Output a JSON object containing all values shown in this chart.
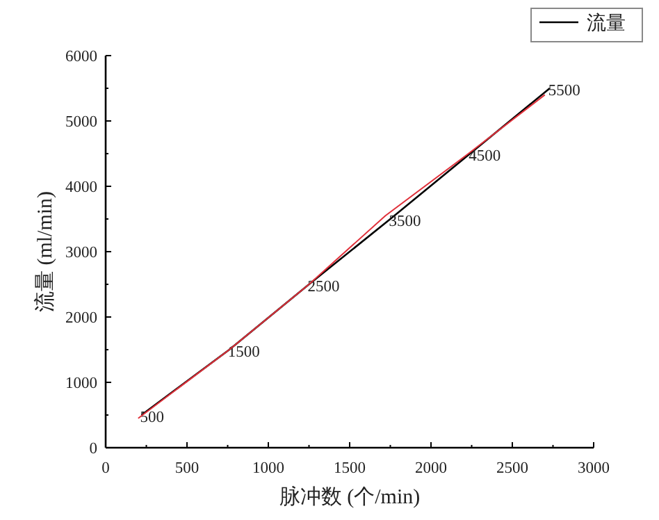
{
  "chart_data": {
    "type": "line",
    "xlabel": "脉冲数 (个/min)",
    "ylabel": "流量 (ml/min)",
    "xlim": [
      0,
      3000
    ],
    "xticks": [
      0,
      500,
      1000,
      1500,
      2000,
      2500,
      3000
    ],
    "ylim": [
      0,
      6000
    ],
    "yticks": [
      0,
      1000,
      2000,
      3000,
      4000,
      5000,
      6000
    ],
    "legend": "top right",
    "marker": "none",
    "line_style": "solid",
    "series": [
      {
        "name": "流量",
        "color": "#000000",
        "x": [
          220,
          760,
          1250,
          1750,
          2240,
          2730
        ],
        "values": [
          500,
          1500,
          2500,
          3500,
          4500,
          5500
        ],
        "value_labels": [
          "500",
          "1500",
          "2500",
          "3500",
          "4500",
          "5500"
        ]
      },
      {
        "color": "#e0303a",
        "x": [
          200,
          760,
          1250,
          1720,
          2230,
          2700
        ],
        "values": [
          450,
          1500,
          2500,
          3550,
          4500,
          5400
        ]
      }
    ]
  }
}
